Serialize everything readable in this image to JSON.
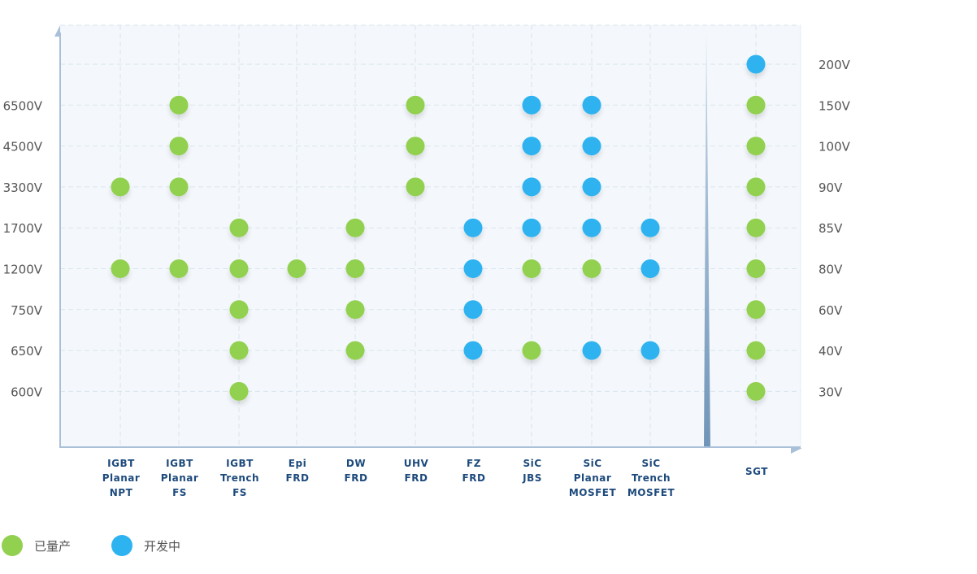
{
  "chart_data": {
    "type": "scatter",
    "left_ticks": [
      "6500V",
      "4500V",
      "3300V",
      "1700V",
      "1200V",
      "750V",
      "650V",
      "600V"
    ],
    "right_ticks": [
      "200V",
      "150V",
      "100V",
      "90V",
      "85V",
      "80V",
      "60V",
      "40V",
      "30V"
    ],
    "categories": [
      [
        "IGBT",
        "Planar",
        "NPT"
      ],
      [
        "IGBT",
        "Planar",
        "FS"
      ],
      [
        "IGBT",
        "Trench",
        "FS"
      ],
      [
        "Epi",
        "FRD"
      ],
      [
        "DW",
        "FRD"
      ],
      [
        "UHV",
        "FRD"
      ],
      [
        "FZ",
        "FRD"
      ],
      [
        "SiC",
        "JBS"
      ],
      [
        "SiC",
        "Planar",
        "MOSFET"
      ],
      [
        "SiC",
        "Trench",
        "MOSFET"
      ],
      [
        "SGT"
      ]
    ],
    "series": [
      {
        "name": "已量产",
        "color": "#92d050",
        "points": [
          {
            "category": 0,
            "voltage": "3300V"
          },
          {
            "category": 0,
            "voltage": "1200V"
          },
          {
            "category": 1,
            "voltage": "6500V"
          },
          {
            "category": 1,
            "voltage": "4500V"
          },
          {
            "category": 1,
            "voltage": "3300V"
          },
          {
            "category": 1,
            "voltage": "1200V"
          },
          {
            "category": 2,
            "voltage": "1700V"
          },
          {
            "category": 2,
            "voltage": "1200V"
          },
          {
            "category": 2,
            "voltage": "750V"
          },
          {
            "category": 2,
            "voltage": "650V"
          },
          {
            "category": 2,
            "voltage": "600V"
          },
          {
            "category": 3,
            "voltage": "1200V"
          },
          {
            "category": 4,
            "voltage": "1700V"
          },
          {
            "category": 4,
            "voltage": "1200V"
          },
          {
            "category": 4,
            "voltage": "750V"
          },
          {
            "category": 4,
            "voltage": "650V"
          },
          {
            "category": 5,
            "voltage": "6500V"
          },
          {
            "category": 5,
            "voltage": "4500V"
          },
          {
            "category": 5,
            "voltage": "3300V"
          },
          {
            "category": 7,
            "voltage": "1200V"
          },
          {
            "category": 7,
            "voltage": "650V"
          },
          {
            "category": 8,
            "voltage": "1200V"
          },
          {
            "category": 10,
            "voltage": "150V"
          },
          {
            "category": 10,
            "voltage": "100V"
          },
          {
            "category": 10,
            "voltage": "90V"
          },
          {
            "category": 10,
            "voltage": "85V"
          },
          {
            "category": 10,
            "voltage": "80V"
          },
          {
            "category": 10,
            "voltage": "60V"
          },
          {
            "category": 10,
            "voltage": "40V"
          },
          {
            "category": 10,
            "voltage": "30V"
          }
        ]
      },
      {
        "name": "开发中",
        "color": "#2db3f0",
        "points": [
          {
            "category": 6,
            "voltage": "1700V"
          },
          {
            "category": 6,
            "voltage": "1200V"
          },
          {
            "category": 6,
            "voltage": "750V"
          },
          {
            "category": 6,
            "voltage": "650V"
          },
          {
            "category": 7,
            "voltage": "6500V"
          },
          {
            "category": 7,
            "voltage": "4500V"
          },
          {
            "category": 7,
            "voltage": "3300V"
          },
          {
            "category": 7,
            "voltage": "1700V"
          },
          {
            "category": 8,
            "voltage": "6500V"
          },
          {
            "category": 8,
            "voltage": "4500V"
          },
          {
            "category": 8,
            "voltage": "3300V"
          },
          {
            "category": 8,
            "voltage": "1700V"
          },
          {
            "category": 8,
            "voltage": "650V"
          },
          {
            "category": 9,
            "voltage": "1700V"
          },
          {
            "category": 9,
            "voltage": "1200V"
          },
          {
            "category": 9,
            "voltage": "650V"
          },
          {
            "category": 10,
            "voltage": "200V"
          }
        ]
      }
    ],
    "grid": true,
    "legend_position": "bottom-left"
  },
  "legend": {
    "produced": "已量产",
    "developing": "开发中"
  }
}
